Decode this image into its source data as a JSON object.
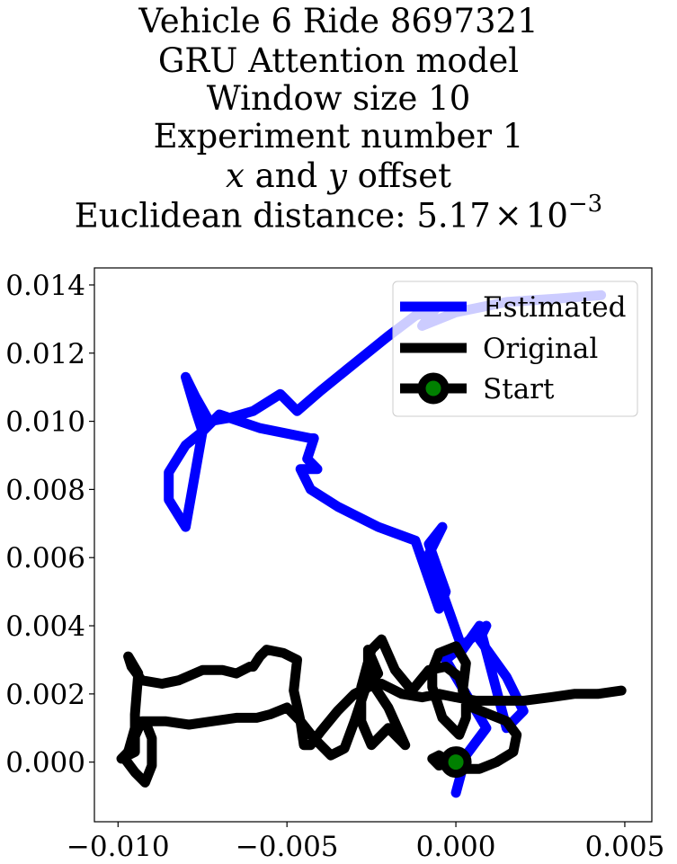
{
  "chart_data": {
    "type": "line",
    "title_lines": [
      "Vehicle 6 Ride 8697321",
      "GRU Attention model",
      "Window size 10",
      "Experiment number 1"
    ],
    "title_offset": {
      "x": "x",
      "and": "and",
      "y": "y",
      "rest": "offset"
    },
    "title_distance": {
      "prefix": "Euclidean distance: ",
      "mantissa": "5.17",
      "times": "×",
      "base": "10",
      "exponent": "−3"
    },
    "xlim": [
      -0.0107,
      0.0058
    ],
    "ylim": [
      -0.00175,
      0.0145
    ],
    "xticks": [
      -0.01,
      -0.005,
      0.0,
      0.005
    ],
    "xtick_labels": [
      "−0.010",
      "−0.005",
      "0.000",
      "0.005"
    ],
    "yticks": [
      0.0,
      0.002,
      0.004,
      0.006,
      0.008,
      0.01,
      0.012,
      0.014
    ],
    "ytick_labels": [
      "0.000",
      "0.002",
      "0.004",
      "0.006",
      "0.008",
      "0.010",
      "0.012",
      "0.014"
    ],
    "grid": false,
    "legend_position": "top-right",
    "legend": [
      "Estimated",
      "Original",
      "Start"
    ],
    "colors": {
      "estimated": "#0000ff",
      "original": "#000000",
      "start_marker_face": "#008000",
      "start_marker_edge": "#000000"
    },
    "series": [
      {
        "name": "Estimated",
        "x": [
          0.0,
          0.0003,
          0.0006,
          0.0009,
          0.0003,
          -0.0003,
          0.0009,
          0.0007,
          0.0015,
          0.002,
          0.0015,
          0.0007,
          0.0002,
          -0.0003,
          -0.0008,
          -0.0004,
          -0.0008,
          -0.0003,
          -0.0005,
          -0.0012,
          -0.0023,
          -0.0035,
          -0.0043,
          -0.0046,
          -0.0041,
          -0.0044,
          -0.0042,
          -0.0043,
          -0.0058,
          -0.007,
          -0.0075,
          -0.0075,
          -0.008,
          -0.0085,
          -0.0085,
          -0.008,
          -0.0075,
          -0.0077,
          -0.008,
          -0.0077,
          -0.0073,
          -0.0067,
          -0.006,
          -0.0052,
          -0.0047,
          -0.004,
          -0.003,
          -0.002,
          -0.0012,
          -0.0006,
          -0.001,
          0.0,
          0.0015,
          0.003,
          0.0043
        ],
        "y": [
          -0.0009,
          0.0002,
          0.0006,
          0.001,
          0.002,
          0.003,
          0.004,
          0.0036,
          0.0025,
          0.0015,
          0.001,
          0.004,
          0.0033,
          0.0047,
          0.0061,
          0.0069,
          0.0064,
          0.005,
          0.0045,
          0.0065,
          0.0069,
          0.0075,
          0.008,
          0.0086,
          0.0086,
          0.0089,
          0.0095,
          0.0095,
          0.0098,
          0.0102,
          0.0097,
          0.0097,
          0.0069,
          0.0077,
          0.0085,
          0.0093,
          0.0097,
          0.0103,
          0.0113,
          0.0107,
          0.01,
          0.0101,
          0.0103,
          0.0108,
          0.0103,
          0.0109,
          0.0117,
          0.0125,
          0.0131,
          0.0133,
          0.0128,
          0.0132,
          0.0135,
          0.0136,
          0.0137
        ]
      },
      {
        "name": "Original",
        "x": [
          0.0,
          -0.0005,
          -0.0007,
          -0.0005,
          0.0002,
          0.0007,
          0.0012,
          0.0017,
          0.0018,
          0.0015,
          0.001,
          0.0005,
          0.0002,
          0.0003,
          0.0,
          -0.0005,
          -0.0007,
          -0.0007,
          -0.0004,
          0.0001,
          0.0003,
          0.0003,
          0.0001,
          -0.0003,
          -0.0008,
          -0.0013,
          -0.0018,
          -0.0022,
          -0.0025,
          -0.0028,
          -0.0028,
          -0.0025,
          -0.002,
          -0.0015,
          -0.002,
          -0.0026,
          -0.0026,
          -0.0023,
          -0.0027,
          -0.003,
          -0.0033,
          -0.0037,
          -0.0042,
          -0.0046,
          -0.0048,
          -0.0047,
          -0.0051,
          -0.0056,
          -0.0058,
          -0.006,
          -0.0061,
          -0.0065,
          -0.0069,
          -0.0075,
          -0.0082,
          -0.0087,
          -0.0093,
          -0.0096,
          -0.0097,
          -0.0094,
          -0.0095,
          -0.0095,
          -0.0099,
          -0.0097,
          -0.0095,
          -0.0092,
          -0.009,
          -0.009,
          -0.0092,
          -0.0095,
          -0.0098,
          -0.0093,
          -0.0086,
          -0.0079,
          -0.0072,
          -0.0065,
          -0.0059,
          -0.0055,
          -0.005,
          -0.0046,
          -0.0045,
          -0.0043,
          -0.004,
          -0.0035,
          -0.003,
          -0.0026,
          -0.0022,
          -0.0016,
          -0.001,
          -0.0005,
          0.0,
          0.0006,
          0.0012,
          0.002,
          0.0028,
          0.0035,
          0.0042,
          0.0049
        ],
        "y": [
          0.0,
          -0.0001,
          0.0001,
          0.0002,
          -0.0002,
          -0.0002,
          0.0,
          0.0003,
          0.0008,
          0.0012,
          0.0014,
          0.0016,
          0.0021,
          0.0029,
          0.0034,
          0.0032,
          0.0027,
          0.0022,
          0.0013,
          0.0008,
          0.0013,
          0.0019,
          0.0025,
          0.0028,
          0.0027,
          0.0021,
          0.0027,
          0.0036,
          0.0033,
          0.0022,
          0.0012,
          0.0005,
          0.001,
          0.0005,
          0.0016,
          0.0025,
          0.0033,
          0.0026,
          0.0021,
          0.0012,
          0.0004,
          0.0002,
          0.0007,
          0.0012,
          0.0021,
          0.003,
          0.0032,
          0.0033,
          0.0031,
          0.0028,
          0.0028,
          0.0026,
          0.0027,
          0.0027,
          0.0024,
          0.0023,
          0.0024,
          0.0028,
          0.0031,
          0.0026,
          0.0014,
          0.0003,
          0.0001,
          0.0003,
          0.001,
          0.0012,
          0.0007,
          -0.0001,
          -0.0006,
          -0.0003,
          0.0001,
          0.0012,
          0.0012,
          0.0011,
          0.0012,
          0.0013,
          0.0013,
          0.0014,
          0.0016,
          0.0012,
          0.0005,
          0.0005,
          0.0009,
          0.0015,
          0.002,
          0.0022,
          0.0023,
          0.002,
          0.0019,
          0.002,
          0.0019,
          0.0018,
          0.0018,
          0.0018,
          0.0019,
          0.002,
          0.002,
          0.0021
        ]
      }
    ],
    "start_point": {
      "name": "Start",
      "x": 0.0,
      "y": 0.0
    }
  }
}
